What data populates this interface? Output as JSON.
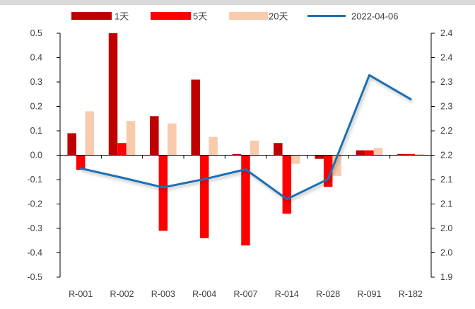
{
  "chart_data": {
    "type": "bar",
    "categories": [
      "R-001",
      "R-002",
      "R-003",
      "R-004",
      "R-007",
      "R-014",
      "R-028",
      "R-091",
      "R-182"
    ],
    "series": [
      {
        "name": "1天",
        "kind": "bar",
        "axis": "left",
        "color": "#c00000",
        "values": [
          0.09,
          0.5,
          0.16,
          0.31,
          0.005,
          0.05,
          -0.015,
          0.02,
          0.005
        ]
      },
      {
        "name": "5天",
        "kind": "bar",
        "axis": "left",
        "color": "#ff0000",
        "values": [
          -0.06,
          0.05,
          -0.31,
          -0.34,
          -0.37,
          -0.24,
          -0.13,
          0.02,
          0.005
        ]
      },
      {
        "name": "20天",
        "kind": "bar",
        "axis": "left",
        "color": "#f8cbad",
        "values": [
          0.18,
          0.14,
          0.13,
          0.075,
          0.06,
          -0.035,
          -0.085,
          0.03,
          0.005
        ]
      },
      {
        "name": "2022-04-06",
        "kind": "line",
        "axis": "right",
        "color": "#1f6fb2",
        "values": [
          2.123,
          2.104,
          2.084,
          2.101,
          2.121,
          2.06,
          2.101,
          2.314,
          2.265
        ]
      }
    ],
    "y_left": {
      "ylim": [
        -0.5,
        0.5
      ],
      "tick_values": [
        -0.5,
        -0.4,
        -0.3,
        -0.2,
        -0.1,
        0.0,
        0.1,
        0.2,
        0.3,
        0.4,
        0.5
      ],
      "tick_labels": [
        "-0.5",
        "-0.4",
        "-0.3",
        "-0.2",
        "-0.1",
        "0.0",
        "0.1",
        "0.2",
        "0.3",
        "0.4",
        "0.5"
      ]
    },
    "y_right": {
      "ylim": [
        1.9,
        2.4
      ],
      "tick_values": [
        1.9,
        1.95,
        2.0,
        2.05,
        2.1,
        2.15,
        2.2,
        2.25,
        2.3,
        2.35,
        2.4
      ],
      "tick_labels": [
        "1.9",
        "2.0",
        "2.0",
        "2.1",
        "2.1",
        "2.2",
        "2.2",
        "2.3",
        "2.3",
        "2.4",
        "2.4"
      ]
    },
    "legend_position": "top",
    "grid": false
  }
}
